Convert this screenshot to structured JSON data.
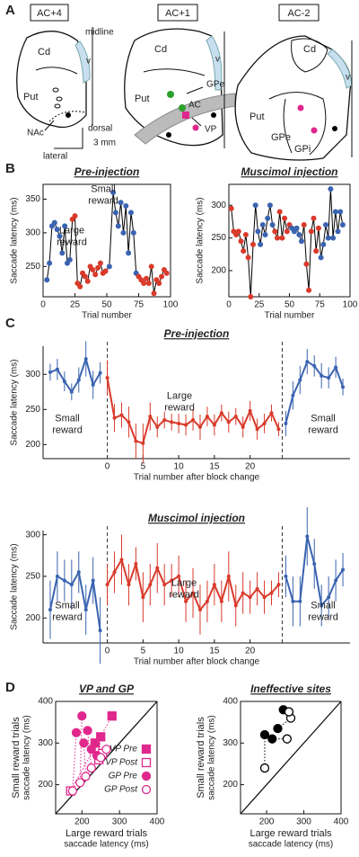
{
  "panels": [
    "A",
    "B",
    "C",
    "D"
  ],
  "panel_a": {
    "sections": [
      {
        "title": "AC+4",
        "labels": [
          "midline",
          "Cd",
          "v",
          "Put",
          "NAc",
          "dorsal",
          "lateral",
          "3 mm"
        ]
      },
      {
        "title": "AC+1",
        "labels": [
          "Cd",
          "v",
          "Put",
          "GPe",
          "AC",
          "VP"
        ]
      },
      {
        "title": "AC-2",
        "labels": [
          "Cd",
          "v",
          "Put",
          "GPe",
          "GPi"
        ]
      }
    ]
  },
  "chart_data": [
    {
      "type": "line",
      "title": "Pre-injection",
      "xlabel": "Trial number",
      "ylabel": "Saccade latency (ms)",
      "frame": "box",
      "xlim": [
        0,
        100
      ],
      "xticks": [
        0,
        25,
        50,
        75,
        100
      ],
      "ylim": [
        205,
        372
      ],
      "yticks": [
        250,
        300,
        350
      ],
      "line_color": "#000000",
      "x": [
        3,
        5,
        7,
        9,
        11,
        13,
        15,
        17,
        19,
        21,
        23,
        25,
        27,
        29,
        31,
        33,
        35,
        37,
        39,
        41,
        43,
        45,
        47,
        49,
        52,
        55,
        57,
        59,
        61,
        63,
        65,
        67,
        69,
        71,
        73,
        75,
        77,
        79,
        81,
        83,
        85,
        87,
        89,
        91,
        93,
        95,
        97
      ],
      "values": [
        230,
        255,
        310,
        315,
        305,
        295,
        270,
        310,
        255,
        260,
        320,
        325,
        225,
        220,
        240,
        235,
        228,
        250,
        245,
        238,
        248,
        255,
        240,
        243,
        250,
        360,
        330,
        310,
        345,
        300,
        340,
        270,
        330,
        300,
        240,
        235,
        230,
        225,
        232,
        225,
        250,
        210,
        230,
        225,
        235,
        245,
        240
      ],
      "point_colors": [
        "#3a63b0",
        "#3a63b0",
        "#3a63b0",
        "#3a63b0",
        "#3a63b0",
        "#3a63b0",
        "#3a63b0",
        "#3a63b0",
        "#3a63b0",
        "#3a63b0",
        "#d93a2b",
        "#d93a2b",
        "#d93a2b",
        "#d93a2b",
        "#d93a2b",
        "#d93a2b",
        "#d93a2b",
        "#d93a2b",
        "#d93a2b",
        "#d93a2b",
        "#d93a2b",
        "#d93a2b",
        "#d93a2b",
        "#d93a2b",
        "#3a63b0",
        "#3a63b0",
        "#3a63b0",
        "#3a63b0",
        "#3a63b0",
        "#3a63b0",
        "#3a63b0",
        "#3a63b0",
        "#3a63b0",
        "#3a63b0",
        "#3a63b0",
        "#d93a2b",
        "#d93a2b",
        "#d93a2b",
        "#d93a2b",
        "#d93a2b",
        "#d93a2b",
        "#d93a2b",
        "#d93a2b",
        "#d93a2b",
        "#d93a2b",
        "#d93a2b",
        "#d93a2b"
      ],
      "annotations": [
        {
          "lines": [
            "Small",
            "reward"
          ],
          "color": "#2e3a8c"
        },
        {
          "lines": [
            "Large",
            "reward"
          ],
          "color": "#d93a2b"
        }
      ]
    },
    {
      "type": "line",
      "title": "Muscimol  injection",
      "xlabel": "Trial number",
      "ylabel": "Saccade latency (ms)",
      "frame": "box",
      "xlim": [
        0,
        100
      ],
      "xticks": [
        0,
        25,
        50,
        75,
        100
      ],
      "ylim": [
        160,
        332
      ],
      "yticks": [
        200,
        250,
        300
      ],
      "line_color": "#000000",
      "x": [
        2,
        4,
        6,
        8,
        10,
        12,
        14,
        16,
        18,
        20,
        22,
        24,
        26,
        28,
        30,
        32,
        34,
        36,
        38,
        40,
        42,
        44,
        46,
        48,
        50,
        52,
        54,
        56,
        58,
        60,
        62,
        64,
        66,
        68,
        70,
        72,
        74,
        76,
        78,
        80,
        82,
        84,
        86,
        88,
        90,
        92,
        94
      ],
      "values": [
        295,
        260,
        255,
        260,
        245,
        230,
        255,
        220,
        160,
        240,
        300,
        260,
        240,
        270,
        255,
        280,
        300,
        270,
        260,
        250,
        290,
        250,
        280,
        260,
        270,
        265,
        260,
        265,
        255,
        245,
        270,
        210,
        170,
        260,
        280,
        230,
        265,
        220,
        240,
        270,
        250,
        325,
        250,
        290,
        260,
        290,
        270
      ],
      "point_colors": [
        "#d93a2b",
        "#d93a2b",
        "#d93a2b",
        "#d93a2b",
        "#d93a2b",
        "#d93a2b",
        "#d93a2b",
        "#d93a2b",
        "#d93a2b",
        "#d93a2b",
        "#3a63b0",
        "#3a63b0",
        "#3a63b0",
        "#3a63b0",
        "#3a63b0",
        "#3a63b0",
        "#3a63b0",
        "#3a63b0",
        "#d93a2b",
        "#d93a2b",
        "#d93a2b",
        "#d93a2b",
        "#d93a2b",
        "#d93a2b",
        "#d93a2b",
        "#3a63b0",
        "#3a63b0",
        "#3a63b0",
        "#3a63b0",
        "#3a63b0",
        "#d93a2b",
        "#d93a2b",
        "#d93a2b",
        "#d93a2b",
        "#d93a2b",
        "#d93a2b",
        "#d93a2b",
        "#3a63b0",
        "#3a63b0",
        "#3a63b0",
        "#3a63b0",
        "#3a63b0",
        "#3a63b0",
        "#3a63b0",
        "#3a63b0",
        "#3a63b0",
        "#3a63b0"
      ]
    },
    {
      "type": "line",
      "title": "Pre-injection",
      "xlabel": "Trial number after block change",
      "ylabel": "Saccade latency (ms)",
      "frame": "open",
      "xlim": [
        -9,
        34
      ],
      "xticks": [
        0,
        5,
        10,
        15,
        20
      ],
      "ylim": [
        180,
        340
      ],
      "yticks": [
        200,
        250,
        300
      ],
      "vlines": [
        0,
        24.5
      ],
      "series": [
        {
          "color": "#3a63b0",
          "x": [
            -8,
            -7,
            -6,
            -5,
            -4,
            -3,
            -2,
            -1
          ],
          "values": [
            303,
            307,
            290,
            275,
            292,
            322,
            285,
            302
          ],
          "errors": [
            12,
            15,
            14,
            12,
            18,
            25,
            20,
            15
          ]
        },
        {
          "color": "#d93a2b",
          "x": [
            0,
            1,
            2,
            3,
            4,
            5,
            6,
            7,
            8,
            9,
            10,
            11,
            12,
            13,
            14,
            15,
            16,
            17,
            18,
            19,
            20,
            21,
            22,
            23,
            24
          ],
          "values": [
            295,
            238,
            242,
            232,
            205,
            202,
            240,
            225,
            235,
            232,
            230,
            228,
            235,
            225,
            240,
            228,
            245,
            232,
            240,
            225,
            248,
            222,
            230,
            245,
            222
          ],
          "errors": [
            25,
            20,
            18,
            22,
            25,
            28,
            20,
            15,
            12,
            12,
            14,
            15,
            15,
            18,
            14,
            15,
            12,
            15,
            12,
            15,
            14,
            15,
            14,
            12,
            10
          ]
        },
        {
          "color": "#3a63b0",
          "x": [
            25,
            26,
            27,
            28,
            29,
            30,
            31,
            32,
            33
          ],
          "values": [
            230,
            270,
            292,
            318,
            312,
            298,
            295,
            310,
            282
          ],
          "errors": [
            18,
            20,
            20,
            18,
            15,
            18,
            15,
            15,
            12
          ]
        }
      ],
      "annotations": [
        {
          "lines": [
            "Small",
            "reward"
          ],
          "color": "#2e3a8c"
        },
        {
          "lines": [
            "Large",
            "reward"
          ],
          "color": "#d93a2b"
        },
        {
          "lines": [
            "Small",
            "reward"
          ],
          "color": "#2e3a8c"
        }
      ]
    },
    {
      "type": "line",
      "title": "Muscimol  injection",
      "xlabel": "Trial number after block change",
      "ylabel": "Saccade latency (ms)",
      "frame": "open",
      "xlim": [
        -9,
        34
      ],
      "xticks": [
        0,
        5,
        10,
        15,
        20
      ],
      "ylim": [
        170,
        305
      ],
      "yticks": [
        200,
        250,
        300
      ],
      "vlines": [
        0,
        24.5
      ],
      "series": [
        {
          "color": "#3a63b0",
          "x": [
            -8,
            -7,
            -6,
            -5,
            -4,
            -3,
            -2,
            -1
          ],
          "values": [
            210,
            250,
            245,
            240,
            255,
            210,
            245,
            185
          ],
          "errors": [
            35,
            30,
            25,
            30,
            25,
            30,
            28,
            40
          ]
        },
        {
          "color": "#d93a2b",
          "x": [
            0,
            1,
            2,
            3,
            4,
            5,
            6,
            7,
            8,
            9,
            10,
            11,
            12,
            13,
            14,
            15,
            16,
            17,
            18,
            19,
            20,
            21,
            22,
            23,
            24
          ],
          "values": [
            240,
            255,
            270,
            240,
            265,
            225,
            240,
            260,
            240,
            245,
            250,
            220,
            230,
            210,
            220,
            240,
            220,
            250,
            215,
            230,
            225,
            235,
            225,
            230,
            240
          ],
          "errors": [
            25,
            25,
            30,
            25,
            20,
            30,
            25,
            30,
            25,
            20,
            25,
            25,
            30,
            30,
            25,
            25,
            25,
            30,
            25,
            25,
            20,
            20,
            20,
            15,
            15
          ]
        },
        {
          "color": "#3a63b0",
          "x": [
            25,
            26,
            27,
            28,
            29,
            30,
            31,
            32,
            33
          ],
          "values": [
            250,
            220,
            220,
            298,
            265,
            215,
            225,
            245,
            258
          ],
          "errors": [
            25,
            30,
            30,
            35,
            30,
            25,
            25,
            25,
            20
          ]
        }
      ],
      "annotations": [
        {
          "lines": [
            "Small",
            "reward"
          ],
          "color": "#2e3a8c"
        },
        {
          "lines": [
            "Large",
            "reward"
          ],
          "color": "#d93a2b"
        },
        {
          "lines": [
            "Small",
            "reward"
          ],
          "color": "#2e3a8c"
        }
      ]
    },
    {
      "type": "scatter",
      "title": "VP and GP",
      "xlabel": [
        "Large reward trials",
        "saccade latency (ms)"
      ],
      "xlabel_color": "#d93a2b",
      "ylabel": [
        "Small reward trials",
        "saccade latency (ms)"
      ],
      "ylabel_color": "#2e3a8c",
      "frame": "box",
      "diagonal": true,
      "connect": true,
      "legend": true,
      "xlim": [
        130,
        400
      ],
      "xticks": [
        200,
        300,
        400
      ],
      "ylim": [
        130,
        400
      ],
      "yticks": [
        200,
        300,
        400
      ],
      "series": [
        {
          "name": "VP Pre",
          "color": "#e0288c",
          "marker": "square",
          "filled": true,
          "x": [
            280,
            250,
            235
          ],
          "values": [
            365,
            315,
            300
          ]
        },
        {
          "name": "VP Post",
          "color": "#e0288c",
          "marker": "square",
          "filled": false,
          "x": [
            170,
            245,
            255
          ],
          "values": [
            185,
            260,
            275
          ]
        },
        {
          "name": "GP Pre",
          "color": "#e0288c",
          "marker": "circle",
          "filled": true,
          "x": [
            185,
            200,
            205,
            215,
            225,
            240
          ],
          "values": [
            325,
            365,
            300,
            330,
            285,
            270
          ]
        },
        {
          "name": "GP Post",
          "color": "#e0288c",
          "marker": "circle",
          "filled": false,
          "x": [
            175,
            195,
            210,
            225,
            250,
            265
          ],
          "values": [
            185,
            205,
            220,
            240,
            265,
            285
          ]
        }
      ]
    },
    {
      "type": "scatter",
      "title": "Ineffective sites",
      "xlabel": [
        "Large reward trials",
        "saccade latency (ms)"
      ],
      "xlabel_color": "#d93a2b",
      "ylabel": [
        "Small reward trials",
        "saccade latency (ms)"
      ],
      "ylabel_color": "#2e3a8c",
      "frame": "box",
      "diagonal": true,
      "connect": true,
      "legend": false,
      "xlim": [
        130,
        400
      ],
      "xticks": [
        200,
        300,
        400
      ],
      "ylim": [
        130,
        400
      ],
      "yticks": [
        200,
        300,
        400
      ],
      "series": [
        {
          "color": "#000000",
          "marker": "circle",
          "filled": true,
          "x": [
            195,
            215,
            230,
            245
          ],
          "values": [
            320,
            310,
            335,
            380
          ]
        },
        {
          "color": "#000000",
          "marker": "circle",
          "filled": false,
          "x": [
            195,
            255,
            265,
            260
          ],
          "values": [
            240,
            310,
            360,
            375
          ]
        }
      ]
    }
  ]
}
